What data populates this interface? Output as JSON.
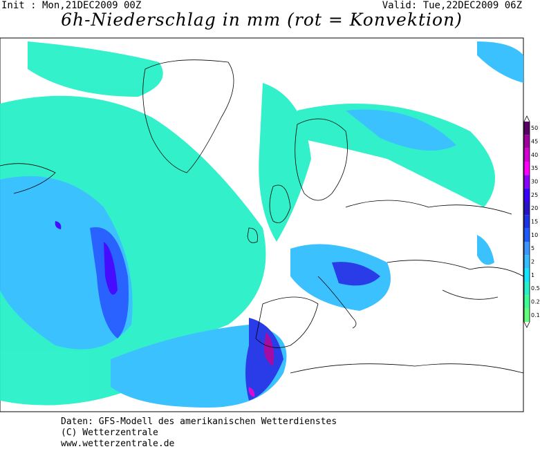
{
  "header": {
    "init": "Init : Mon,21DEC2009 00Z",
    "valid": "Valid: Tue,22DEC2009 06Z",
    "title": "6h-Niederschlag in mm (rot = Konvektion)"
  },
  "legend": {
    "levels": [
      50,
      45,
      40,
      35,
      30,
      25,
      20,
      15,
      10,
      5,
      2,
      1,
      0.5,
      0.2,
      0.1
    ],
    "colors": [
      "#5a0064",
      "#a000a0",
      "#d200d2",
      "#ff00ff",
      "#8c00ff",
      "#3c00ff",
      "#2814c8",
      "#1e32e6",
      "#1e5aff",
      "#3c96ff",
      "#32beff",
      "#14e6ff",
      "#28f0c8",
      "#3cff96",
      "#64ff78"
    ]
  },
  "footer": {
    "line1": "Daten: GFS-Modell des amerikanischen Wetterdienstes",
    "line2": "(C) Wetterzentrale",
    "line3": "www.wetterzentrale.de"
  }
}
